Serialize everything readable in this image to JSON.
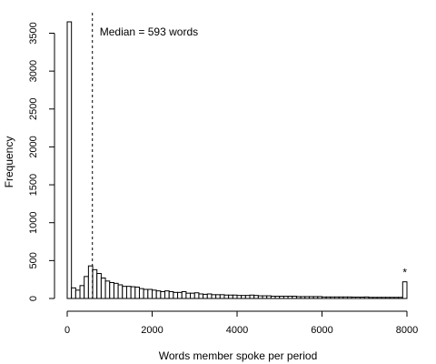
{
  "chart_data": {
    "type": "bar",
    "title": "",
    "xlabel": "Words member spoke per period",
    "ylabel": "Frequency",
    "xlim": [
      0,
      8000
    ],
    "ylim": [
      0,
      3650
    ],
    "x_ticks": [
      0,
      2000,
      4000,
      6000,
      8000
    ],
    "y_ticks": [
      0,
      500,
      1000,
      1500,
      2000,
      2500,
      3000,
      3500
    ],
    "bin_width": 100,
    "bin_start": 0,
    "values": [
      3650,
      140,
      110,
      170,
      290,
      430,
      380,
      330,
      270,
      230,
      210,
      200,
      180,
      160,
      160,
      155,
      150,
      130,
      120,
      120,
      110,
      100,
      90,
      100,
      90,
      80,
      80,
      90,
      70,
      70,
      75,
      60,
      55,
      60,
      50,
      50,
      50,
      45,
      45,
      45,
      40,
      40,
      40,
      45,
      40,
      35,
      35,
      35,
      30,
      30,
      30,
      30,
      30,
      30,
      25,
      25,
      25,
      25,
      25,
      25,
      20,
      20,
      20,
      20,
      20,
      20,
      20,
      18,
      18,
      18,
      20,
      15,
      15,
      15,
      15,
      15,
      15,
      15,
      15,
      15
    ],
    "overflow_bar": {
      "x": [
        7900,
        8000
      ],
      "value": 220,
      "marker": "*"
    },
    "median_line": {
      "x": 593,
      "label": "Median = 593 words",
      "style": "dashed"
    },
    "grid": false,
    "legend": "none"
  }
}
